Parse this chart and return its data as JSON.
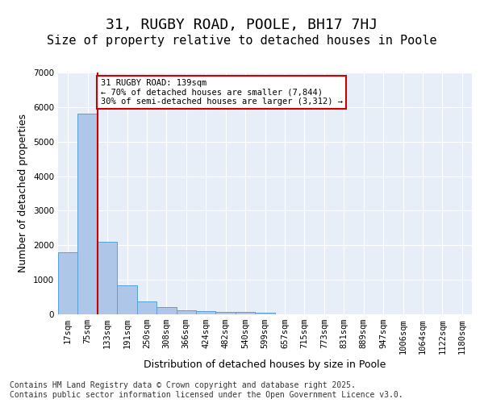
{
  "title": "31, RUGBY ROAD, POOLE, BH17 7HJ",
  "subtitle": "Size of property relative to detached houses in Poole",
  "xlabel": "Distribution of detached houses by size in Poole",
  "ylabel": "Number of detached properties",
  "bin_labels": [
    "17sqm",
    "75sqm",
    "133sqm",
    "191sqm",
    "250sqm",
    "308sqm",
    "366sqm",
    "424sqm",
    "482sqm",
    "540sqm",
    "599sqm",
    "657sqm",
    "715sqm",
    "773sqm",
    "831sqm",
    "889sqm",
    "947sqm",
    "1006sqm",
    "1064sqm",
    "1122sqm",
    "1180sqm"
  ],
  "bar_values": [
    1800,
    5820,
    2100,
    840,
    380,
    220,
    120,
    100,
    80,
    60,
    50,
    0,
    0,
    0,
    0,
    0,
    0,
    0,
    0,
    0,
    0
  ],
  "bar_color": "#aec6e8",
  "bar_edge_color": "#5a9fd4",
  "background_color": "#e8eef8",
  "grid_color": "#ffffff",
  "property_line_x": 1.5,
  "property_line_color": "#cc0000",
  "annotation_text": "31 RUGBY ROAD: 139sqm\n← 70% of detached houses are smaller (7,844)\n30% of semi-detached houses are larger (3,312) →",
  "annotation_box_color": "#cc0000",
  "ylim": [
    0,
    7000
  ],
  "yticks": [
    0,
    1000,
    2000,
    3000,
    4000,
    5000,
    6000,
    7000
  ],
  "footer_text": "Contains HM Land Registry data © Crown copyright and database right 2025.\nContains public sector information licensed under the Open Government Licence v3.0.",
  "title_fontsize": 13,
  "subtitle_fontsize": 11,
  "axis_label_fontsize": 9,
  "tick_fontsize": 7.5,
  "footer_fontsize": 7
}
